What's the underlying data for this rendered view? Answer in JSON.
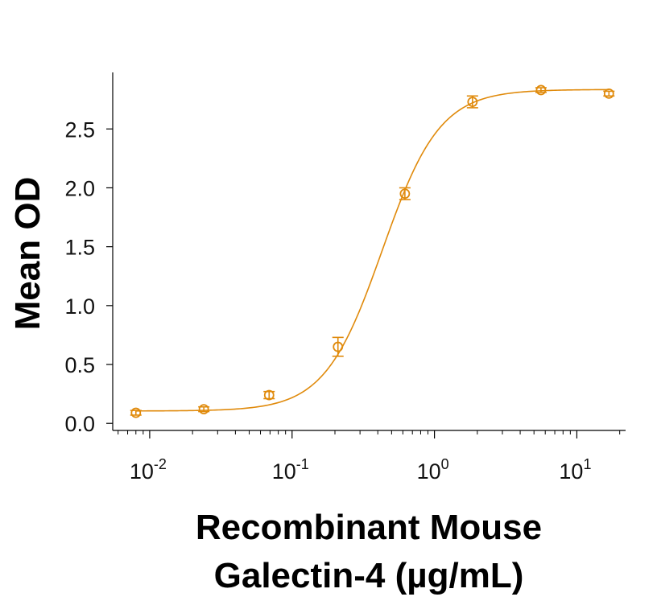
{
  "colors": {
    "series": "#E08A0B",
    "axis": "#000000",
    "text": "#111111"
  },
  "chart_data": {
    "type": "scatter",
    "title": "",
    "xlabel_lines": [
      "Recombinant Mouse",
      "Galectin-4 (µg/mL)"
    ],
    "ylabel": "Mean OD",
    "xscale": "log",
    "xlim": [
      0.0055,
      22
    ],
    "ylim": [
      -0.06,
      2.98
    ],
    "y_ticks": [
      0.0,
      0.5,
      1.0,
      1.5,
      2.0,
      2.5
    ],
    "y_tick_labels": [
      "0.0",
      "0.5",
      "1.0",
      "1.5",
      "2.0",
      "2.5"
    ],
    "x_major_ticks": [
      0.01,
      0.1,
      1,
      10
    ],
    "x_tick_labels": [
      {
        "base": "10",
        "exp": "-2"
      },
      {
        "base": "10",
        "exp": "-1"
      },
      {
        "base": "10",
        "exp": "0"
      },
      {
        "base": "10",
        "exp": "1"
      }
    ],
    "grid": false,
    "legend": "none",
    "series": [
      {
        "marker": "open-circle",
        "x": [
          0.008,
          0.024,
          0.069,
          0.21,
          0.62,
          1.85,
          5.6,
          16.8
        ],
        "y": [
          0.09,
          0.12,
          0.24,
          0.65,
          1.95,
          2.73,
          2.83,
          2.8
        ],
        "err": [
          0.02,
          0.02,
          0.03,
          0.08,
          0.05,
          0.05,
          0.02,
          0.02
        ]
      }
    ],
    "fit": {
      "model": "4PL",
      "bottom": 0.105,
      "top": 2.835,
      "ec50": 0.43,
      "hill": 2.15
    }
  }
}
